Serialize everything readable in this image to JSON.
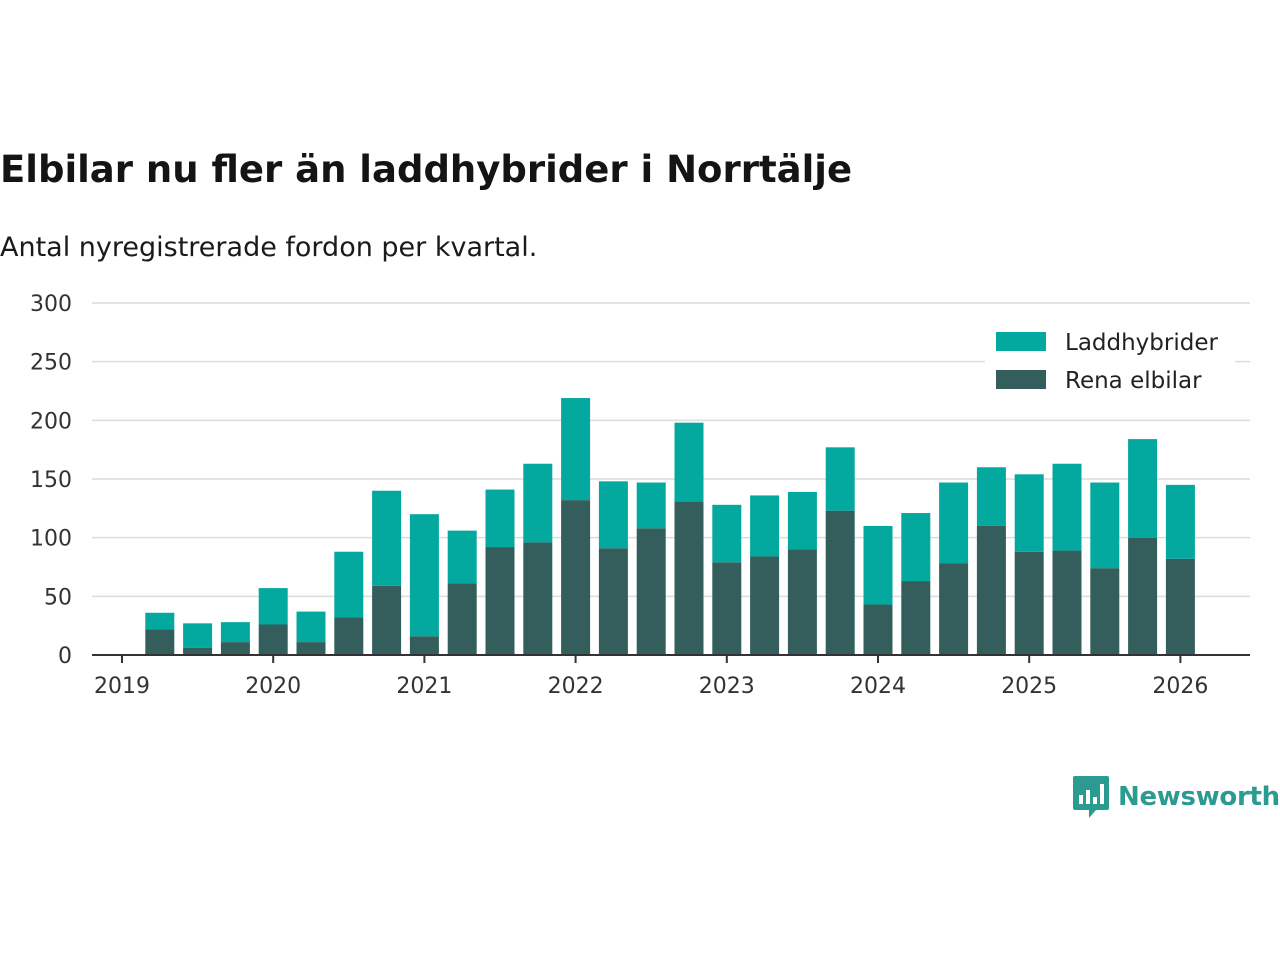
{
  "chart_data": {
    "type": "bar",
    "stacked": true,
    "title": "Elbilar nu fler än laddhybrider i Norrtälje",
    "subtitle": "Antal nyregistrerade fordon per kvartal.",
    "xlabel": "",
    "ylabel": "",
    "ylim": [
      0,
      300
    ],
    "yticks": [
      0,
      50,
      100,
      150,
      200,
      250,
      300
    ],
    "xticks": [
      "2019",
      "2020",
      "2021",
      "2022",
      "2023",
      "2024",
      "2025",
      "2026"
    ],
    "grid": true,
    "legend_position": "top-right",
    "categories": [
      "2019-Q2",
      "2019-Q3",
      "2019-Q4",
      "2020-Q1",
      "2020-Q2",
      "2020-Q3",
      "2020-Q4",
      "2021-Q1",
      "2021-Q2",
      "2021-Q3",
      "2021-Q4",
      "2022-Q1",
      "2022-Q2",
      "2022-Q3",
      "2022-Q4",
      "2023-Q1",
      "2023-Q2",
      "2023-Q3",
      "2023-Q4",
      "2024-Q1",
      "2024-Q2",
      "2024-Q3",
      "2024-Q4",
      "2025-Q1",
      "2025-Q2",
      "2025-Q3",
      "2025-Q4",
      "2026-Q1"
    ],
    "series": [
      {
        "name": "Rena elbilar",
        "color": "#335e5b",
        "values": [
          22,
          6,
          11,
          26,
          11,
          32,
          59,
          16,
          61,
          92,
          96,
          132,
          91,
          108,
          131,
          79,
          84,
          90,
          123,
          43,
          63,
          78,
          110,
          88,
          89,
          74,
          100,
          82
        ]
      },
      {
        "name": "Laddhybrider",
        "color": "#03a89e",
        "values": [
          14,
          21,
          17,
          31,
          26,
          56,
          81,
          104,
          45,
          49,
          67,
          87,
          57,
          39,
          67,
          49,
          52,
          49,
          54,
          67,
          58,
          69,
          50,
          66,
          74,
          73,
          84,
          63
        ]
      }
    ]
  },
  "brand": {
    "name": "Newsworthy",
    "logo_icon": "newsworthy-logo-icon",
    "color": "#2b9a90"
  }
}
